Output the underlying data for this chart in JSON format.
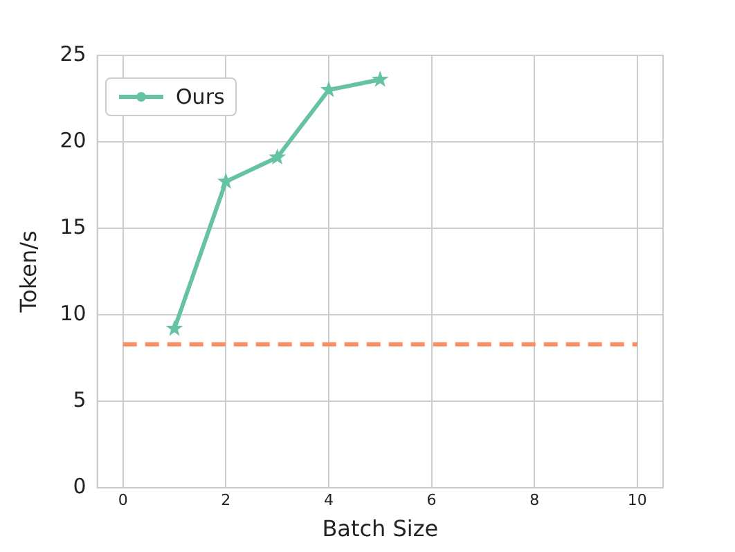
{
  "chart_data": {
    "type": "line",
    "xlabel": "Batch Size",
    "ylabel": "Token/s",
    "xlim": [
      -0.5,
      10.5
    ],
    "ylim": [
      0,
      25
    ],
    "xticks": [
      0,
      2,
      4,
      6,
      8,
      10
    ],
    "yticks": [
      0,
      5,
      10,
      15,
      20,
      25
    ],
    "grid": true,
    "legend": "top left",
    "series": [
      {
        "name": "Ours",
        "color": "#66c2a5",
        "x": [
          1,
          2,
          3,
          4,
          5
        ],
        "values": [
          9.2,
          17.7,
          19.1,
          23.0,
          23.6
        ],
        "marker": "star",
        "line_style": "solid"
      },
      {
        "color": "#fc8d62",
        "x": [
          0,
          10
        ],
        "values": [
          8.3,
          8.3
        ],
        "marker": "none",
        "line_style": "dashed"
      }
    ]
  }
}
